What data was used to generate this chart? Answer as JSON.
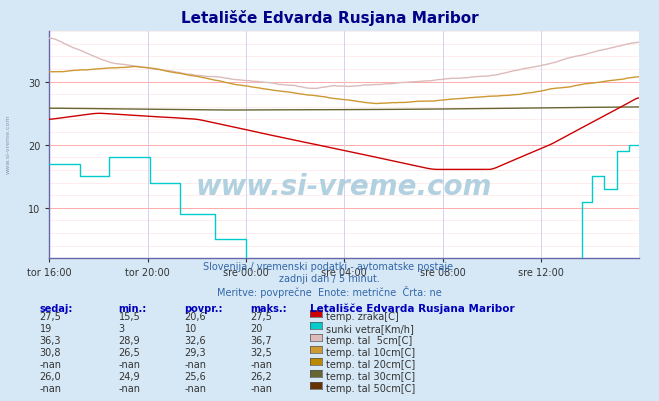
{
  "title": "Letališče Edvarda Rusjana Maribor",
  "bg_color": "#d6e8f5",
  "plot_bg_color": "#ffffff",
  "grid_color_h": "#ffaaaa",
  "grid_color_v": "#ddddff",
  "xlabel_ticks": [
    "tor 16:00",
    "tor 20:00",
    "sre 00:00",
    "sre 04:00",
    "sre 08:00",
    "sre 12:00"
  ],
  "yticks": [
    10,
    20,
    30
  ],
  "ylim": [
    2,
    38
  ],
  "xlim": [
    0,
    288
  ],
  "subtitle1": "Slovenija / vremenski podatki - avtomatske postaje.",
  "subtitle2": "zadnji dan / 5 minut.",
  "subtitle3": "Meritve: povprečne  Enote: metrične  Črta: ne",
  "watermark": "www.si-vreme.com",
  "colors": {
    "temp_zraka": "#cc0000",
    "sunki_vetra": "#00cccc",
    "tal_5cm": "#ddbbbb",
    "tal_10cm": "#cc9933",
    "tal_20cm": "#bb8800",
    "tal_30cm": "#666633",
    "tal_50cm": "#663300"
  },
  "legend_header": "Letališče Edvarda Rusjana Maribor",
  "legend_rows": [
    [
      "27,5",
      "15,5",
      "20,6",
      "27,5",
      "#cc0000",
      "temp. zraka[C]"
    ],
    [
      "19",
      "3",
      "10",
      "20",
      "#00cccc",
      "sunki vetra[Km/h]"
    ],
    [
      "36,3",
      "28,9",
      "32,6",
      "36,7",
      "#ddbbbb",
      "temp. tal  5cm[C]"
    ],
    [
      "30,8",
      "26,5",
      "29,3",
      "32,5",
      "#cc9933",
      "temp. tal 10cm[C]"
    ],
    [
      "-nan",
      "-nan",
      "-nan",
      "-nan",
      "#bb8800",
      "temp. tal 20cm[C]"
    ],
    [
      "26,0",
      "24,9",
      "25,6",
      "26,2",
      "#666633",
      "temp. tal 30cm[C]"
    ],
    [
      "-nan",
      "-nan",
      "-nan",
      "-nan",
      "#663300",
      "temp. tal 50cm[C]"
    ]
  ]
}
